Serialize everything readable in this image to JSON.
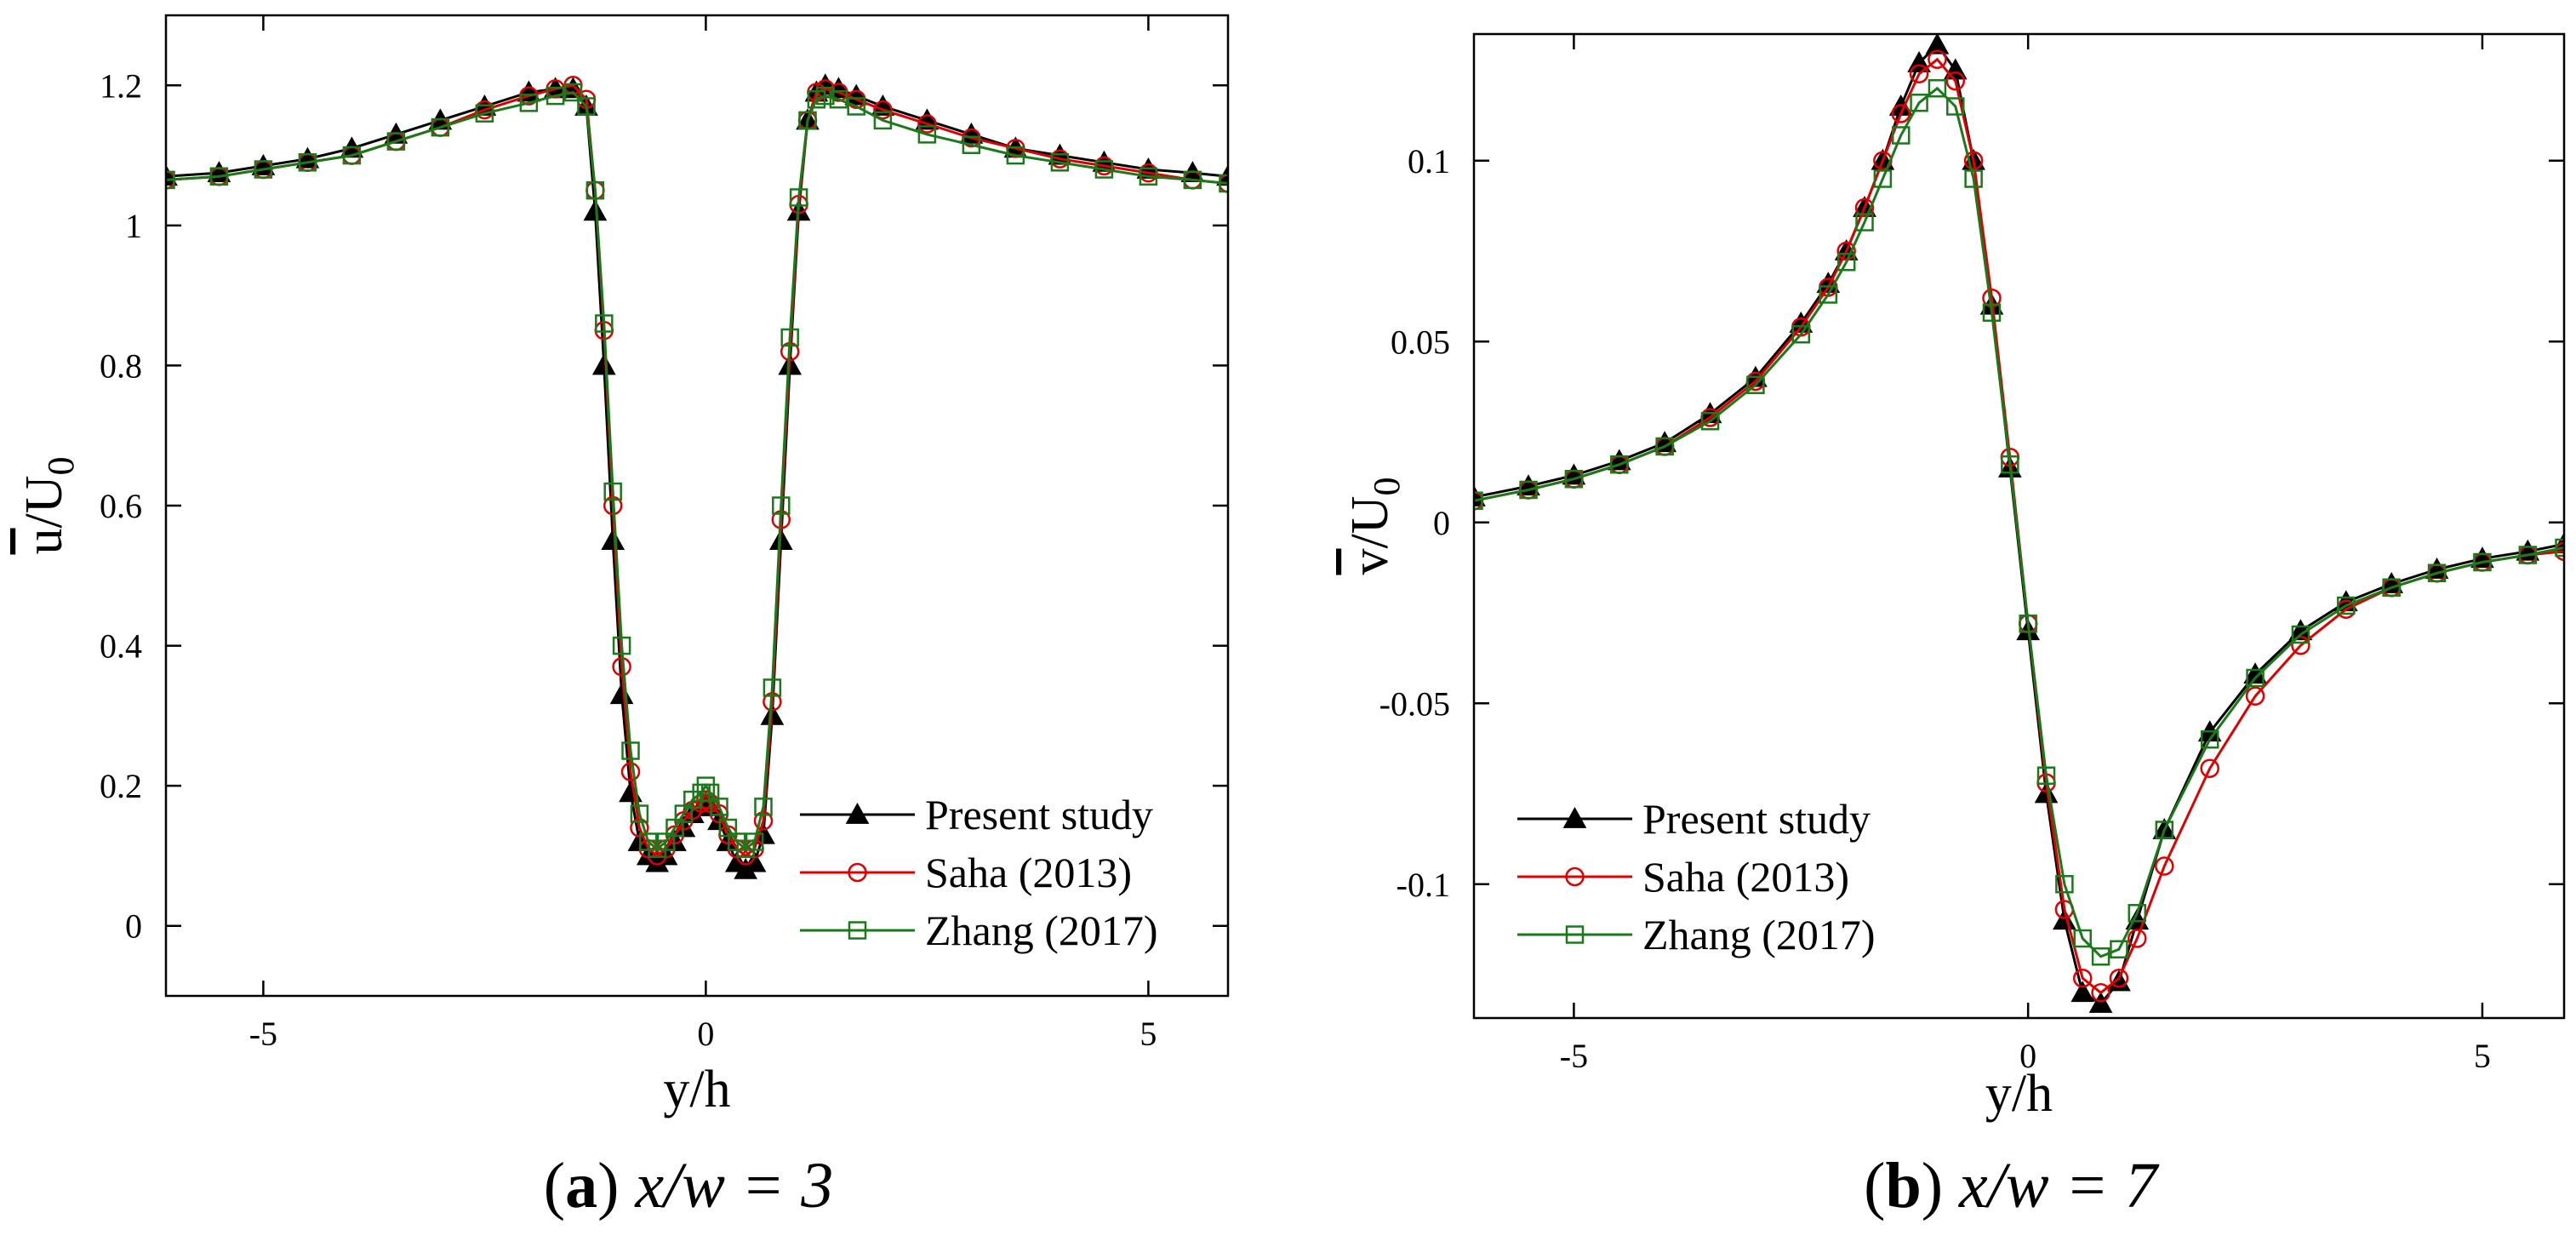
{
  "chart_data": [
    {
      "type": "line",
      "panel": "a",
      "caption": {
        "letter": "a",
        "math": "x/w = 3"
      },
      "xlabel": "y/h",
      "ylabel": {
        "base": "u",
        "overline": true,
        "rest": "/U",
        "sub": "0"
      },
      "xlim": [
        -6.1,
        5.9
      ],
      "ylim": [
        -0.1,
        1.3
      ],
      "xticks": [
        -5,
        0,
        5
      ],
      "xtick_labels": [
        "-5",
        "0",
        "5"
      ],
      "yticks": [
        0,
        0.2,
        0.4,
        0.6,
        0.8,
        1.0,
        1.2
      ],
      "ytick_labels": [
        "0",
        "0.2",
        "0.4",
        "0.6",
        "0.8",
        "1",
        "1.2"
      ],
      "grid": false,
      "legend_position": "bottom-right",
      "series": [
        {
          "name": "Present study",
          "color": "#000000",
          "marker": "filled-triangle",
          "x": [
            -6.1,
            -5.5,
            -5.0,
            -4.5,
            -4.0,
            -3.5,
            -3.0,
            -2.5,
            -2.0,
            -1.7,
            -1.5,
            -1.35,
            -1.25,
            -1.15,
            -1.05,
            -0.95,
            -0.85,
            -0.75,
            -0.65,
            -0.55,
            -0.45,
            -0.35,
            -0.25,
            -0.15,
            -0.05,
            0.0,
            0.05,
            0.15,
            0.25,
            0.35,
            0.45,
            0.55,
            0.65,
            0.75,
            0.85,
            0.95,
            1.05,
            1.15,
            1.25,
            1.35,
            1.5,
            1.7,
            2.0,
            2.5,
            3.0,
            3.5,
            4.0,
            4.5,
            5.0,
            5.5,
            5.9
          ],
          "y": [
            1.07,
            1.075,
            1.085,
            1.095,
            1.11,
            1.13,
            1.15,
            1.17,
            1.19,
            1.195,
            1.195,
            1.17,
            1.02,
            0.8,
            0.55,
            0.33,
            0.19,
            0.12,
            0.1,
            0.09,
            0.1,
            0.12,
            0.14,
            0.16,
            0.17,
            0.175,
            0.17,
            0.15,
            0.12,
            0.09,
            0.08,
            0.09,
            0.13,
            0.3,
            0.55,
            0.8,
            1.02,
            1.15,
            1.19,
            1.2,
            1.195,
            1.185,
            1.17,
            1.15,
            1.13,
            1.11,
            1.1,
            1.09,
            1.08,
            1.075,
            1.07
          ]
        },
        {
          "name": "Saha (2013)",
          "color": "#e00000",
          "marker": "open-circle",
          "x": [
            -6.1,
            -5.5,
            -5.0,
            -4.5,
            -4.0,
            -3.5,
            -3.0,
            -2.5,
            -2.0,
            -1.7,
            -1.5,
            -1.35,
            -1.25,
            -1.15,
            -1.05,
            -0.95,
            -0.85,
            -0.75,
            -0.65,
            -0.55,
            -0.45,
            -0.35,
            -0.25,
            -0.15,
            -0.05,
            0.0,
            0.05,
            0.15,
            0.25,
            0.35,
            0.45,
            0.55,
            0.65,
            0.75,
            0.85,
            0.95,
            1.05,
            1.15,
            1.25,
            1.35,
            1.5,
            1.7,
            2.0,
            2.5,
            3.0,
            3.5,
            4.0,
            4.5,
            5.0,
            5.5,
            5.9
          ],
          "y": [
            1.065,
            1.07,
            1.08,
            1.09,
            1.1,
            1.12,
            1.14,
            1.165,
            1.185,
            1.195,
            1.2,
            1.18,
            1.05,
            0.85,
            0.6,
            0.37,
            0.22,
            0.14,
            0.11,
            0.1,
            0.11,
            0.13,
            0.15,
            0.165,
            0.175,
            0.18,
            0.175,
            0.16,
            0.13,
            0.11,
            0.1,
            0.11,
            0.15,
            0.32,
            0.58,
            0.82,
            1.03,
            1.15,
            1.19,
            1.195,
            1.19,
            1.18,
            1.165,
            1.145,
            1.125,
            1.11,
            1.095,
            1.085,
            1.075,
            1.065,
            1.06
          ]
        },
        {
          "name": "Zhang (2017)",
          "color": "#1a7a1a",
          "marker": "open-square",
          "x": [
            -6.1,
            -5.5,
            -5.0,
            -4.5,
            -4.0,
            -3.5,
            -3.0,
            -2.5,
            -2.0,
            -1.7,
            -1.5,
            -1.35,
            -1.25,
            -1.15,
            -1.05,
            -0.95,
            -0.85,
            -0.75,
            -0.65,
            -0.55,
            -0.45,
            -0.35,
            -0.25,
            -0.15,
            -0.05,
            0.0,
            0.05,
            0.15,
            0.25,
            0.35,
            0.45,
            0.55,
            0.65,
            0.75,
            0.85,
            0.95,
            1.05,
            1.15,
            1.25,
            1.35,
            1.5,
            1.7,
            2.0,
            2.5,
            3.0,
            3.5,
            4.0,
            4.5,
            5.0,
            5.5,
            5.9
          ],
          "y": [
            1.065,
            1.07,
            1.08,
            1.09,
            1.1,
            1.12,
            1.14,
            1.16,
            1.175,
            1.185,
            1.19,
            1.17,
            1.05,
            0.86,
            0.62,
            0.4,
            0.25,
            0.16,
            0.12,
            0.11,
            0.12,
            0.14,
            0.16,
            0.18,
            0.19,
            0.2,
            0.19,
            0.17,
            0.14,
            0.12,
            0.11,
            0.12,
            0.17,
            0.34,
            0.6,
            0.84,
            1.04,
            1.15,
            1.18,
            1.185,
            1.18,
            1.17,
            1.15,
            1.13,
            1.115,
            1.1,
            1.09,
            1.08,
            1.07,
            1.065,
            1.06
          ]
        }
      ]
    },
    {
      "type": "line",
      "panel": "b",
      "caption": {
        "letter": "b",
        "math": "x/w = 7"
      },
      "xlabel": "y/h",
      "ylabel": {
        "base": "v",
        "overline": true,
        "rest": "/U",
        "sub": "0"
      },
      "xlim": [
        -6.1,
        5.9
      ],
      "ylim": [
        -0.137,
        0.135
      ],
      "xticks": [
        -5,
        0,
        5
      ],
      "xtick_labels": [
        "-5",
        "0",
        "5"
      ],
      "yticks": [
        -0.1,
        -0.05,
        0,
        0.05,
        0.1
      ],
      "ytick_labels": [
        "-0.1",
        "-0.05",
        "0",
        "0.05",
        "0.1"
      ],
      "grid": false,
      "legend_position": "bottom-left",
      "series": [
        {
          "name": "Present study",
          "color": "#000000",
          "marker": "filled-triangle",
          "x": [
            -6.1,
            -5.5,
            -5.0,
            -4.5,
            -4.0,
            -3.5,
            -3.0,
            -2.5,
            -2.2,
            -2.0,
            -1.8,
            -1.6,
            -1.4,
            -1.2,
            -1.0,
            -0.8,
            -0.6,
            -0.4,
            -0.2,
            0.0,
            0.2,
            0.4,
            0.6,
            0.8,
            1.0,
            1.2,
            1.5,
            2.0,
            2.5,
            3.0,
            3.5,
            4.0,
            4.5,
            5.0,
            5.5,
            5.9
          ],
          "y": [
            0.007,
            0.01,
            0.013,
            0.017,
            0.022,
            0.03,
            0.04,
            0.055,
            0.066,
            0.075,
            0.087,
            0.1,
            0.115,
            0.127,
            0.132,
            0.125,
            0.1,
            0.06,
            0.015,
            -0.03,
            -0.075,
            -0.11,
            -0.13,
            -0.133,
            -0.127,
            -0.11,
            -0.085,
            -0.058,
            -0.042,
            -0.03,
            -0.022,
            -0.017,
            -0.013,
            -0.01,
            -0.008,
            -0.006
          ]
        },
        {
          "name": "Saha (2013)",
          "color": "#e00000",
          "marker": "open-circle",
          "x": [
            -6.1,
            -5.5,
            -5.0,
            -4.5,
            -4.0,
            -3.5,
            -3.0,
            -2.5,
            -2.2,
            -2.0,
            -1.8,
            -1.6,
            -1.4,
            -1.2,
            -1.0,
            -0.8,
            -0.6,
            -0.4,
            -0.2,
            0.0,
            0.2,
            0.4,
            0.6,
            0.8,
            1.0,
            1.2,
            1.5,
            2.0,
            2.5,
            3.0,
            3.5,
            4.0,
            4.5,
            5.0,
            5.5,
            5.9
          ],
          "y": [
            0.006,
            0.009,
            0.012,
            0.016,
            0.021,
            0.029,
            0.039,
            0.054,
            0.065,
            0.075,
            0.087,
            0.1,
            0.113,
            0.124,
            0.128,
            0.122,
            0.1,
            0.062,
            0.018,
            -0.028,
            -0.072,
            -0.107,
            -0.126,
            -0.13,
            -0.126,
            -0.115,
            -0.095,
            -0.068,
            -0.048,
            -0.034,
            -0.024,
            -0.018,
            -0.014,
            -0.011,
            -0.009,
            -0.008
          ]
        },
        {
          "name": "Zhang (2017)",
          "color": "#1a7a1a",
          "marker": "open-square",
          "x": [
            -6.1,
            -5.5,
            -5.0,
            -4.5,
            -4.0,
            -3.5,
            -3.0,
            -2.5,
            -2.2,
            -2.0,
            -1.8,
            -1.6,
            -1.4,
            -1.2,
            -1.0,
            -0.8,
            -0.6,
            -0.4,
            -0.2,
            0.0,
            0.2,
            0.4,
            0.6,
            0.8,
            1.0,
            1.2,
            1.5,
            2.0,
            2.5,
            3.0,
            3.5,
            4.0,
            4.5,
            5.0,
            5.5,
            5.9
          ],
          "y": [
            0.006,
            0.009,
            0.012,
            0.016,
            0.021,
            0.028,
            0.038,
            0.052,
            0.063,
            0.072,
            0.083,
            0.095,
            0.107,
            0.116,
            0.12,
            0.115,
            0.095,
            0.058,
            0.016,
            -0.028,
            -0.07,
            -0.1,
            -0.115,
            -0.12,
            -0.118,
            -0.108,
            -0.085,
            -0.06,
            -0.043,
            -0.031,
            -0.023,
            -0.018,
            -0.014,
            -0.011,
            -0.009,
            -0.007
          ]
        }
      ]
    }
  ]
}
